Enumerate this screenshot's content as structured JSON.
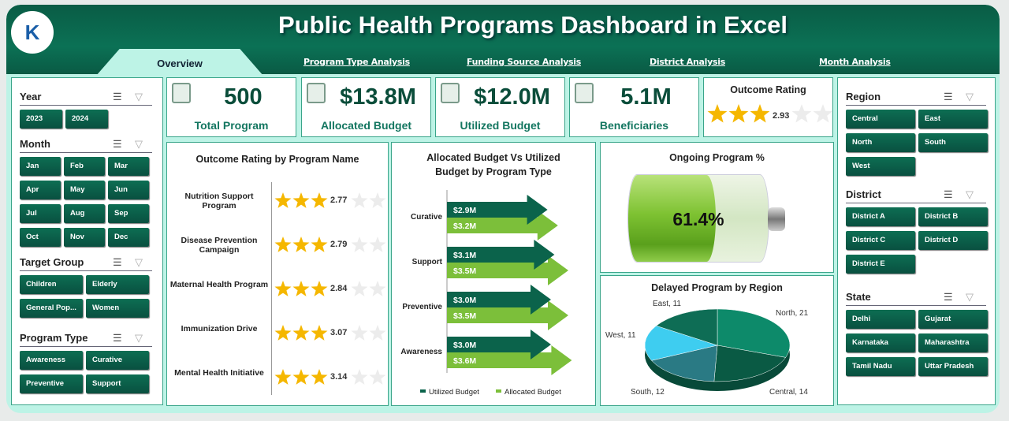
{
  "title": "Public Health Programs Dashboard in Excel",
  "logo_text": "K",
  "tabs": {
    "active": "Overview",
    "items": [
      "Program Type Analysis",
      "Funding Source Analysis",
      "District Analysis",
      "Month Analysis"
    ]
  },
  "kpis": [
    {
      "value": "500",
      "label": "Total Program",
      "icon": "clipboard-icon"
    },
    {
      "value": "$13.8M",
      "label": "Allocated Budget",
      "icon": "money-hand-icon"
    },
    {
      "value": "$12.0M",
      "label": "Utilized Budget",
      "icon": "money-bag-icon"
    },
    {
      "value": "5.1M",
      "label": "Beneficiaries",
      "icon": "people-network-icon"
    }
  ],
  "outcome": {
    "title": "Outcome Rating",
    "value": 2.93,
    "label": "2.93"
  },
  "slicers_left": [
    {
      "title": "Year",
      "items": [
        "2023",
        "2024"
      ]
    },
    {
      "title": "Month",
      "items": [
        "Jan",
        "Feb",
        "Mar",
        "Apr",
        "May",
        "Jun",
        "Jul",
        "Aug",
        "Sep",
        "Oct",
        "Nov",
        "Dec"
      ]
    },
    {
      "title": "Target Group",
      "items": [
        "Children",
        "Elderly",
        "General Pop...",
        "Women"
      ]
    },
    {
      "title": "Program Type",
      "items": [
        "Awareness",
        "Curative",
        "Preventive",
        "Support"
      ]
    }
  ],
  "slicers_right": [
    {
      "title": "Region",
      "items": [
        "Central",
        "East",
        "North",
        "South",
        "West"
      ]
    },
    {
      "title": "District",
      "items": [
        "District A",
        "District B",
        "District C",
        "District D",
        "District E"
      ]
    },
    {
      "title": "State",
      "items": [
        "Delhi",
        "Gujarat",
        "Karnataka",
        "Maharashtra",
        "Tamil Nadu",
        "Uttar Pradesh"
      ]
    }
  ],
  "chart_data": [
    {
      "type": "bar",
      "title": "Outcome Rating by Program Name",
      "categories": [
        "Nutrition Support Program",
        "Disease Prevention Campaign",
        "Maternal Health Program",
        "Immunization Drive",
        "Mental Health Initiative"
      ],
      "values": [
        2.77,
        2.79,
        2.84,
        3.07,
        3.14
      ],
      "labels": [
        "2.77",
        "2.79",
        "2.84",
        "3.07",
        "3.14"
      ],
      "max": 5
    },
    {
      "type": "bar",
      "title": "Allocated Budget Vs Utilized Budget by Program Type",
      "categories": [
        "Curative",
        "Support",
        "Preventive",
        "Awareness"
      ],
      "series": [
        {
          "name": "Utilized Budget",
          "values": [
            2.9,
            3.1,
            3.0,
            3.0
          ],
          "labels": [
            "$2.9M",
            "$3.1M",
            "$3.0M",
            "$3.0M"
          ],
          "color": "#0b634b"
        },
        {
          "name": "Allocated Budget",
          "values": [
            3.2,
            3.5,
            3.5,
            3.6
          ],
          "labels": [
            "$3.2M",
            "$3.5M",
            "$3.5M",
            "$3.6M"
          ],
          "color": "#7cbf3a"
        }
      ],
      "legend": "bottom"
    },
    {
      "type": "gauge",
      "title": "Ongoing Program %",
      "value": 61.4,
      "label": "61.4%"
    },
    {
      "type": "pie",
      "title": "Delayed Program by Region",
      "categories": [
        "North",
        "Central",
        "South",
        "West",
        "East"
      ],
      "values": [
        21,
        14,
        12,
        11,
        11
      ],
      "labels": [
        "North, 21",
        "Central, 14",
        "South, 12",
        "West, 11",
        "East, 11"
      ],
      "colors": [
        "#0d8a6a",
        "#0a5a44",
        "#2a7a84",
        "#3ecdf0",
        "#0e6d55"
      ]
    }
  ]
}
